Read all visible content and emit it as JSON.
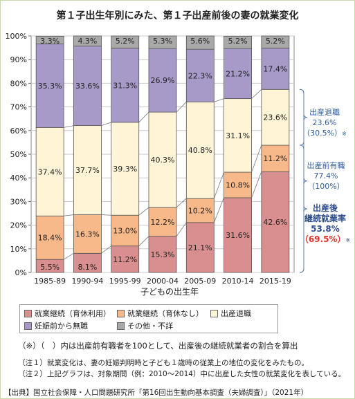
{
  "title": "第１子出生年別にみた、第１子出産前後の妻の就業変化",
  "chart_data": {
    "type": "bar",
    "stacked": true,
    "percent": true,
    "categories": [
      "1985-89",
      "1990-94",
      "1995-99",
      "2000-04",
      "2005-09",
      "2010-14",
      "2015-19"
    ],
    "xlabel": "子どもの出生年",
    "ylim": [
      0,
      100
    ],
    "yticks": [
      "0%",
      "10%",
      "20%",
      "30%",
      "40%",
      "50%",
      "60%",
      "70%",
      "80%",
      "90%",
      "100%"
    ],
    "series": [
      {
        "name": "就業継続（育休利用）",
        "color": "#d98f8f",
        "values": [
          5.5,
          8.1,
          11.2,
          15.3,
          21.1,
          31.6,
          42.6
        ]
      },
      {
        "name": "就業継続（育休なし）",
        "color": "#f8b98a",
        "values": [
          18.4,
          16.3,
          13.0,
          12.2,
          10.2,
          10.8,
          11.2
        ]
      },
      {
        "name": "出産退職",
        "color": "#fff4d6",
        "values": [
          37.4,
          37.7,
          39.3,
          40.3,
          40.8,
          31.1,
          23.6
        ]
      },
      {
        "name": "妊娠前から無職",
        "color": "#a79ac9",
        "values": [
          35.3,
          33.6,
          31.3,
          26.9,
          22.3,
          21.2,
          17.4
        ]
      },
      {
        "name": "その他・不詳",
        "color": "#a9a9a9",
        "values": [
          3.3,
          4.3,
          5.2,
          5.3,
          5.6,
          5.2,
          5.2
        ]
      }
    ],
    "labels": [
      [
        "5.5%",
        "8.1%",
        "11.2%",
        "15.3%",
        "21.1%",
        "31.6%",
        "42.6%"
      ],
      [
        "18.4%",
        "16.3%",
        "13.0%",
        "12.2%",
        "10.2%",
        "10.8%",
        "11.2%"
      ],
      [
        "37.4%",
        "37.7%",
        "39.3%",
        "40.3%",
        "40.8%",
        "31.1%",
        "23.6%"
      ],
      [
        "35.3%",
        "33.6%",
        "31.3%",
        "26.9%",
        "22.3%",
        "21.2%",
        "17.4%"
      ],
      [
        "3.3%",
        "4.3%",
        "5.2%",
        "5.3%",
        "5.6%",
        "5.2%",
        "5.2%"
      ]
    ],
    "legend_position": "bottom"
  },
  "side": {
    "a_title": "出産退職",
    "a_val1": "23.6%",
    "a_val2": "（30.5%）",
    "b_title": "出産前有職",
    "b_val1": "77.4%",
    "b_val2": "（100%）",
    "c_title1": "出産後",
    "c_title2": "継続就業率",
    "c_val1": "53.8%",
    "c_val2": "（69.5%）",
    "xmark": "※"
  },
  "legend": {
    "l1": "就業継続（育休利用）",
    "l2": "就業継続（育休なし）",
    "l3": "出産退職",
    "l4": "妊娠前から無職",
    "l5": "その他・不詳"
  },
  "notes": {
    "n0": "（※）（　）内は出産前有職者を100として、出産後の継続就業者の割合を算出",
    "n1": "（注１）就業変化は、妻の妊娠判明時と子ども１歳時の従業上の地位の変化をみたもの。",
    "n2": "（注２）上記グラフは、対象期間（例：2010～2014）中に出産した女性の就業変化を表している。",
    "source": "【出典】国立社会保障・人口問題研究所「第16回出生動向基本調査（夫婦調査）」（2021年）"
  }
}
